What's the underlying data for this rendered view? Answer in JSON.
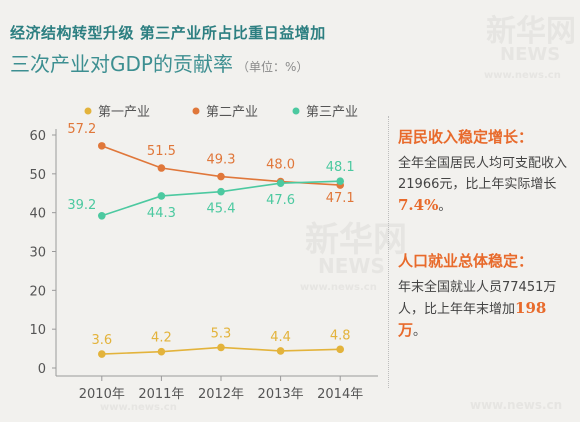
{
  "title": {
    "main": "经济结构转型升级 第三产业所占比重日益增加",
    "sub": "三次产业对GDP的贡献率",
    "unit": "（单位：%）"
  },
  "colors": {
    "primary": "#e3b33b",
    "secondary": "#e0773a",
    "tertiary": "#4cc9a0",
    "heading": "#2d7f81",
    "accent": "#e86a2b"
  },
  "chart_data": {
    "type": "line",
    "categories": [
      "2010年",
      "2011年",
      "2012年",
      "2013年",
      "2014年"
    ],
    "series": [
      {
        "name": "第一产业",
        "values": [
          3.6,
          4.2,
          5.3,
          4.4,
          4.8
        ]
      },
      {
        "name": "第二产业",
        "values": [
          57.2,
          51.5,
          49.3,
          48.0,
          47.1
        ]
      },
      {
        "name": "第三产业",
        "values": [
          39.2,
          44.3,
          45.4,
          47.6,
          48.1
        ]
      }
    ],
    "ylim": [
      0,
      60
    ],
    "yticks": [
      0,
      10,
      20,
      30,
      40,
      50,
      60
    ],
    "legend": "top",
    "grid": false
  },
  "sidebar": {
    "income": {
      "heading": "居民收入稳定增长：",
      "text_a": "全年全国居民人均可支配收入21966元，比上年实际增长",
      "highlight": "7.4%",
      "text_b": "。"
    },
    "employment": {
      "heading": "人口就业总体稳定：",
      "text_a": "年末全国就业人员77451万人，比上年年末增加",
      "highlight": "198万",
      "text_b": "。"
    }
  },
  "watermark": {
    "logo": "新华网",
    "brand": "NEWS",
    "url": "www.news.cn"
  }
}
